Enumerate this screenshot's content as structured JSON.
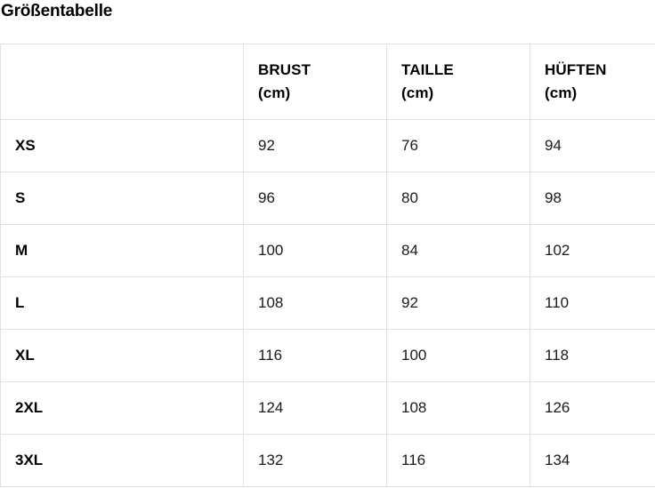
{
  "display": {
    "title": "Größentabelle",
    "headers": [
      "",
      "BRUST\n(cm)",
      "TAILLE\n(cm)",
      "HÜFTEN\n(cm)"
    ]
  },
  "chart_data": {
    "type": "table",
    "title": "Größentabelle",
    "columns": [
      "",
      "BRUST (cm)",
      "TAILLE (cm)",
      "HÜFTEN (cm)"
    ],
    "rows": [
      [
        "XS",
        92,
        76,
        94
      ],
      [
        "S",
        96,
        80,
        98
      ],
      [
        "M",
        100,
        84,
        102
      ],
      [
        "L",
        108,
        92,
        110
      ],
      [
        "XL",
        116,
        100,
        118
      ],
      [
        "2XL",
        124,
        108,
        126
      ],
      [
        "3XL",
        132,
        116,
        134
      ]
    ]
  },
  "colors": {
    "border": "#e1e1e1",
    "text": "#000000",
    "background": "#ffffff"
  }
}
